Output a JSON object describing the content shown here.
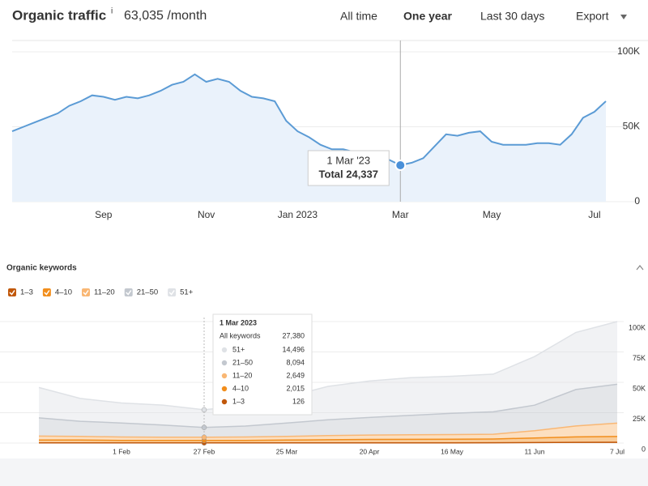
{
  "header": {
    "title": "Organic traffic",
    "info": "i",
    "total": "63,035 /month",
    "tabs": [
      "All time",
      "One year",
      "Last 30 days"
    ],
    "export": "Export"
  },
  "chart_data": [
    {
      "type": "area",
      "color": "#5b9bd5",
      "categories": [
        null,
        null,
        null,
        null,
        null,
        null,
        null,
        null,
        "Sep",
        null,
        null,
        null,
        null,
        null,
        null,
        null,
        null,
        "Nov",
        null,
        null,
        null,
        null,
        null,
        null,
        null,
        "Jan 2023",
        null,
        null,
        null,
        null,
        null,
        null,
        null,
        null,
        "Mar",
        null,
        null,
        null,
        null,
        null,
        null,
        null,
        "May",
        null,
        null,
        null,
        null,
        null,
        null,
        null,
        null,
        "Jul",
        null
      ],
      "values": [
        47000,
        50000,
        53000,
        56000,
        59000,
        64000,
        67000,
        71000,
        70000,
        68000,
        70000,
        69000,
        71000,
        74000,
        78000,
        80000,
        85000,
        80000,
        82000,
        80000,
        74000,
        70000,
        69000,
        67000,
        54000,
        47000,
        43000,
        38000,
        35000,
        35000,
        33000,
        32000,
        30000,
        28000,
        24337,
        26000,
        29000,
        37000,
        45000,
        44000,
        46000,
        47000,
        40000,
        38000,
        38000,
        38000,
        39000,
        39000,
        38000,
        45000,
        56000,
        60000,
        67000
      ],
      "ylim": [
        0,
        100000
      ],
      "yticks": [
        0,
        {
          "value": 50000,
          "label": "50K"
        },
        {
          "value": 100000,
          "label": "100K"
        }
      ],
      "grid": true,
      "tooltip": {
        "title": "1 Mar '23",
        "text": "Total 24,337"
      }
    },
    {
      "type": "stacked_area",
      "title": "Organic keywords",
      "categories": [
        null,
        null,
        "1 Feb",
        null,
        "27 Feb",
        null,
        "25 Mar",
        null,
        "20 Apr",
        null,
        "16 May",
        null,
        "11 Jun",
        null,
        "7 Jul"
      ],
      "series": [
        {
          "name": "1–3",
          "color": "#c1580b",
          "values": [
            150,
            140,
            130,
            128,
            126,
            130,
            140,
            160,
            180,
            200,
            220,
            240,
            400,
            600,
            700
          ]
        },
        {
          "name": "4–10",
          "color": "#f28e1c",
          "values": [
            2400,
            2300,
            2100,
            2050,
            2015,
            2100,
            2300,
            2600,
            2800,
            2900,
            3000,
            3100,
            3800,
            4500,
            4700
          ]
        },
        {
          "name": "11–20",
          "color": "#f9b774",
          "values": [
            3200,
            3000,
            2800,
            2700,
            2649,
            2800,
            3000,
            3400,
            3600,
            3700,
            3800,
            3900,
            6000,
            9000,
            11000
          ]
        },
        {
          "name": "21–50",
          "color": "#c3c8cf",
          "values": [
            15000,
            12500,
            11500,
            10000,
            8094,
            9000,
            11000,
            13000,
            14500,
            16000,
            17500,
            18500,
            21000,
            30000,
            32000
          ]
        },
        {
          "name": "51+",
          "color": "#dfe2e6",
          "values": [
            25000,
            18800,
            16500,
            16400,
            14496,
            17000,
            21500,
            27500,
            30000,
            31000,
            30500,
            31000,
            40000,
            47000,
            51600
          ]
        }
      ],
      "ylim": [
        0,
        100000
      ],
      "yticks": [
        0,
        {
          "value": 25000,
          "label": "25K"
        },
        {
          "value": 50000,
          "label": "50K"
        },
        {
          "value": 75000,
          "label": "75K"
        },
        {
          "value": 100000,
          "label": "100K"
        }
      ],
      "grid": true,
      "tooltip": {
        "title": "1 Mar 2023",
        "total_label": "All keywords",
        "total": "27,380",
        "value_labels": [
          "126",
          "2,015",
          "2,649",
          "8,094",
          "14,496"
        ]
      }
    }
  ]
}
